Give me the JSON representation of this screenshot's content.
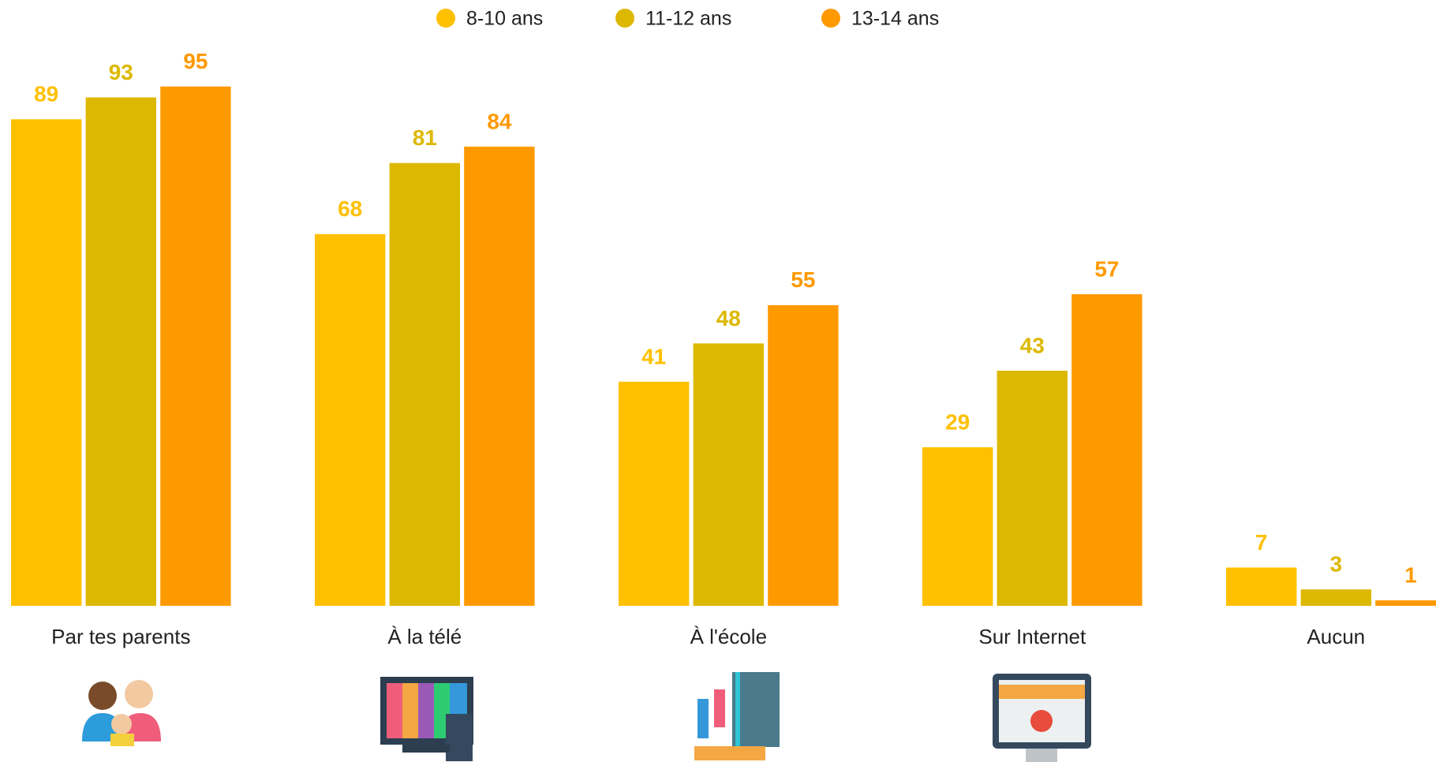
{
  "chart_data": {
    "type": "bar",
    "categories": [
      "Par tes parents",
      "À la télé",
      "À l'école",
      "Sur Internet",
      "Aucun"
    ],
    "series": [
      {
        "name": "8-10 ans",
        "color": "#FFC000",
        "values": [
          89,
          68,
          41,
          29,
          7
        ]
      },
      {
        "name": "11-12 ans",
        "color": "#DDB800",
        "values": [
          93,
          81,
          48,
          43,
          3
        ]
      },
      {
        "name": "13-14 ans",
        "color": "#FF9900",
        "values": [
          95,
          84,
          55,
          57,
          1
        ]
      }
    ],
    "legend": "top"
  }
}
